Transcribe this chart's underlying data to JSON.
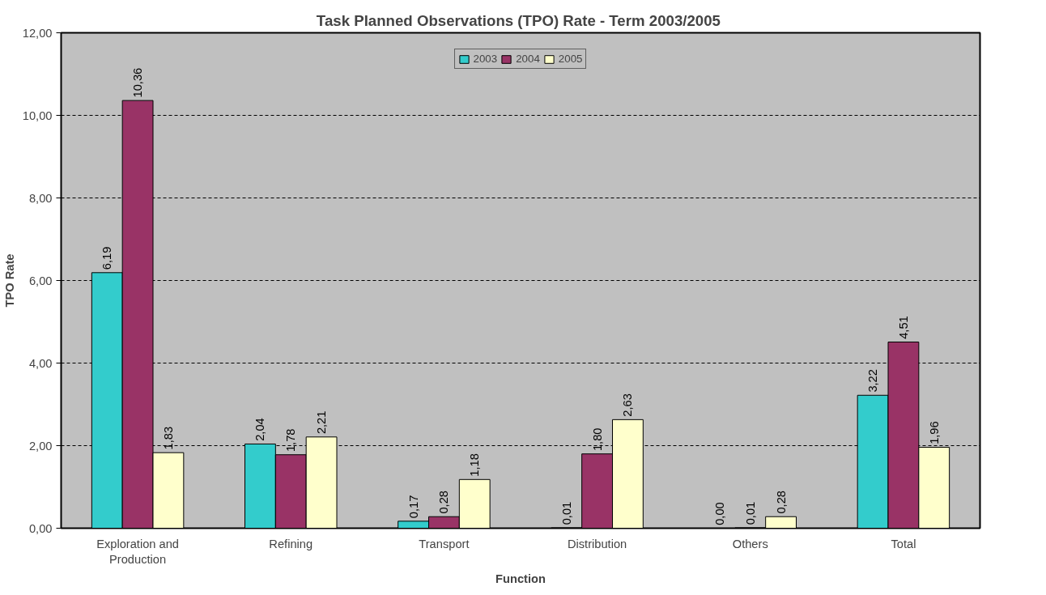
{
  "chart_data": {
    "type": "bar",
    "title": "Task Planned Observations  (TPO) Rate - Term 2003/2005",
    "xlabel": "Function",
    "ylabel": "TPO Rate",
    "categories": [
      "Exploration and Production",
      "Refining",
      "Transport",
      "Distribution",
      "Others",
      "Total"
    ],
    "series": [
      {
        "name": "2003",
        "color": "#33cccc",
        "values": [
          6.19,
          2.04,
          0.17,
          0.01,
          0.0,
          3.22
        ],
        "value_labels": [
          "6,19",
          "2,04",
          "0,17",
          "0,01",
          "0,00",
          "3,22"
        ]
      },
      {
        "name": "2004",
        "color": "#993366",
        "values": [
          10.36,
          1.78,
          0.28,
          1.8,
          0.01,
          4.51
        ],
        "value_labels": [
          "10,36",
          "1,78",
          "0,28",
          "1,80",
          "0,01",
          "4,51"
        ]
      },
      {
        "name": "2005",
        "color": "#ffffcc",
        "values": [
          1.83,
          2.21,
          1.18,
          2.63,
          0.28,
          1.96
        ],
        "value_labels": [
          "1,83",
          "2,21",
          "1,18",
          "2,63",
          "0,28",
          "1,96"
        ]
      }
    ],
    "ylim": [
      0,
      12
    ],
    "yticks": [
      {
        "value": 0,
        "label": "0,00"
      },
      {
        "value": 2,
        "label": "2,00"
      },
      {
        "value": 4,
        "label": "4,00"
      },
      {
        "value": 6,
        "label": "6,00"
      },
      {
        "value": 8,
        "label": "8,00"
      },
      {
        "value": 10,
        "label": "10,00"
      },
      {
        "value": 12,
        "label": "12,00"
      }
    ],
    "grid": "y",
    "legend": "top"
  }
}
